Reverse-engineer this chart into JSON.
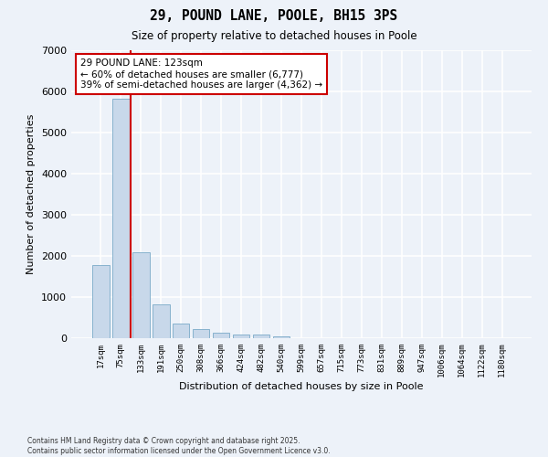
{
  "title": "29, POUND LANE, POOLE, BH15 3PS",
  "subtitle": "Size of property relative to detached houses in Poole",
  "xlabel": "Distribution of detached houses by size in Poole",
  "ylabel": "Number of detached properties",
  "bar_color": "#c8d8ea",
  "bar_edge_color": "#7aaac8",
  "background_color": "#edf2f9",
  "grid_color": "#ffffff",
  "vline_color": "#cc0000",
  "categories": [
    "17sqm",
    "75sqm",
    "133sqm",
    "191sqm",
    "250sqm",
    "308sqm",
    "366sqm",
    "424sqm",
    "482sqm",
    "540sqm",
    "599sqm",
    "657sqm",
    "715sqm",
    "773sqm",
    "831sqm",
    "889sqm",
    "947sqm",
    "1006sqm",
    "1064sqm",
    "1122sqm",
    "1180sqm"
  ],
  "values": [
    1780,
    5820,
    2090,
    820,
    360,
    215,
    130,
    100,
    85,
    50,
    0,
    0,
    0,
    0,
    0,
    0,
    0,
    0,
    0,
    0,
    0
  ],
  "ylim": [
    0,
    7000
  ],
  "yticks": [
    0,
    1000,
    2000,
    3000,
    4000,
    5000,
    6000,
    7000
  ],
  "annotation_title": "29 POUND LANE: 123sqm",
  "annotation_line1": "← 60% of detached houses are smaller (6,777)",
  "annotation_line2": "39% of semi-detached houses are larger (4,362) →",
  "annotation_box_color": "#cc0000",
  "footer_line1": "Contains HM Land Registry data © Crown copyright and database right 2025.",
  "footer_line2": "Contains public sector information licensed under the Open Government Licence v3.0."
}
